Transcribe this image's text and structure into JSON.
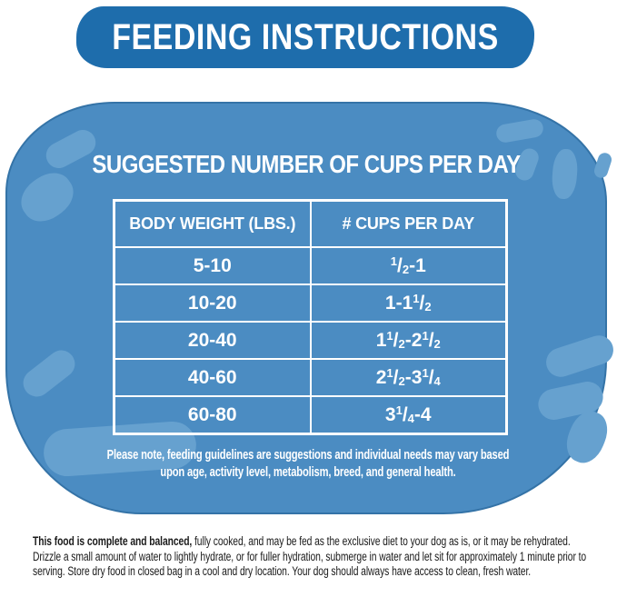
{
  "banner": {
    "title": "FEEDING INSTRUCTIONS"
  },
  "panel": {
    "title": "SUGGESTED NUMBER OF CUPS PER DAY",
    "table": {
      "headers": [
        "BODY WEIGHT (LBS.)",
        "# CUPS PER DAY"
      ],
      "rows": [
        {
          "weight": "5-10",
          "cups": "½-1"
        },
        {
          "weight": "10-20",
          "cups": "1-1½"
        },
        {
          "weight": "20-40",
          "cups": "1½-2½"
        },
        {
          "weight": "40-60",
          "cups": "2½-3¼"
        },
        {
          "weight": "60-80",
          "cups": "3¼-4"
        }
      ]
    },
    "note": "Please note, feeding guidelines are suggestions and individual needs may vary based upon age, activity level, metabolism, breed, and general health."
  },
  "footer": {
    "lead": "This food is complete and balanced,",
    "body": " fully cooked, and may be fed as the exclusive diet to your dog as is, or it may be rehydrated. Drizzle a small amount of water to lightly hydrate, or for fuller hydration, submerge in water and let sit for approximately 1 minute prior to serving. Store dry food in closed bag in a cool and dry location. Your dog should always have access to clean, fresh water."
  },
  "colors": {
    "banner_blue": "#1e6dac",
    "panel_blue": "#4b8cc2",
    "spot_blue": "#66a1cf",
    "text_white": "#ffffff",
    "text_black": "#1a1a1a"
  }
}
